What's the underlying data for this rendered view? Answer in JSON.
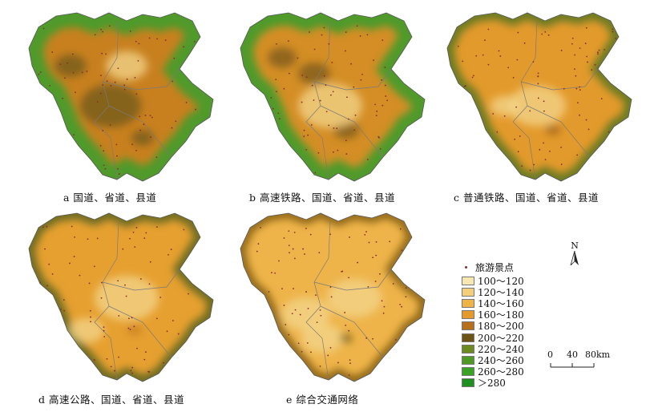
{
  "panels": [
    {
      "id": "a",
      "caption": "a 国道、省道、县道",
      "dominant": "#c8801f",
      "edge": "#4f9a2a",
      "mid": "#6f5a1e"
    },
    {
      "id": "b",
      "caption": "b 高速铁路、国道、省道、县道",
      "dominant": "#d48e25",
      "edge": "#4f9a2a",
      "mid": "#7a5a1a"
    },
    {
      "id": "c",
      "caption": "c 普通铁路、国道、省道、县道",
      "dominant": "#e39a2c",
      "edge": "#6b7a22",
      "mid": "#a6651a"
    },
    {
      "id": "d",
      "caption": "d 高速公路、国道、省道、县道",
      "dominant": "#e6a030",
      "edge": "#6b6a20",
      "mid": "#c98020"
    },
    {
      "id": "e",
      "caption": "e 综合交通网络",
      "dominant": "#eeb44a",
      "edge": "#8a6418",
      "mid": "#f3d68c"
    }
  ],
  "legend": {
    "title": "旅游景点",
    "classes": [
      {
        "label": "100～120",
        "color": "#f7e7b0"
      },
      {
        "label": "120～140",
        "color": "#f3cf7a"
      },
      {
        "label": "140～160",
        "color": "#efb445"
      },
      {
        "label": "160～180",
        "color": "#e6992b"
      },
      {
        "label": "180～200",
        "color": "#b8701c"
      },
      {
        "label": "200～220",
        "color": "#6b5416"
      },
      {
        "label": "220～240",
        "color": "#6b8a20"
      },
      {
        "label": "240～260",
        "color": "#4f9a24"
      },
      {
        "label": "260～280",
        "color": "#3aa226"
      },
      {
        "label": "＞280",
        "color": "#1f8f1f"
      }
    ]
  },
  "north_arrow": {
    "label": "N"
  },
  "scale_bar": {
    "ticks": [
      "0",
      "40",
      "80"
    ],
    "unit": "km"
  }
}
